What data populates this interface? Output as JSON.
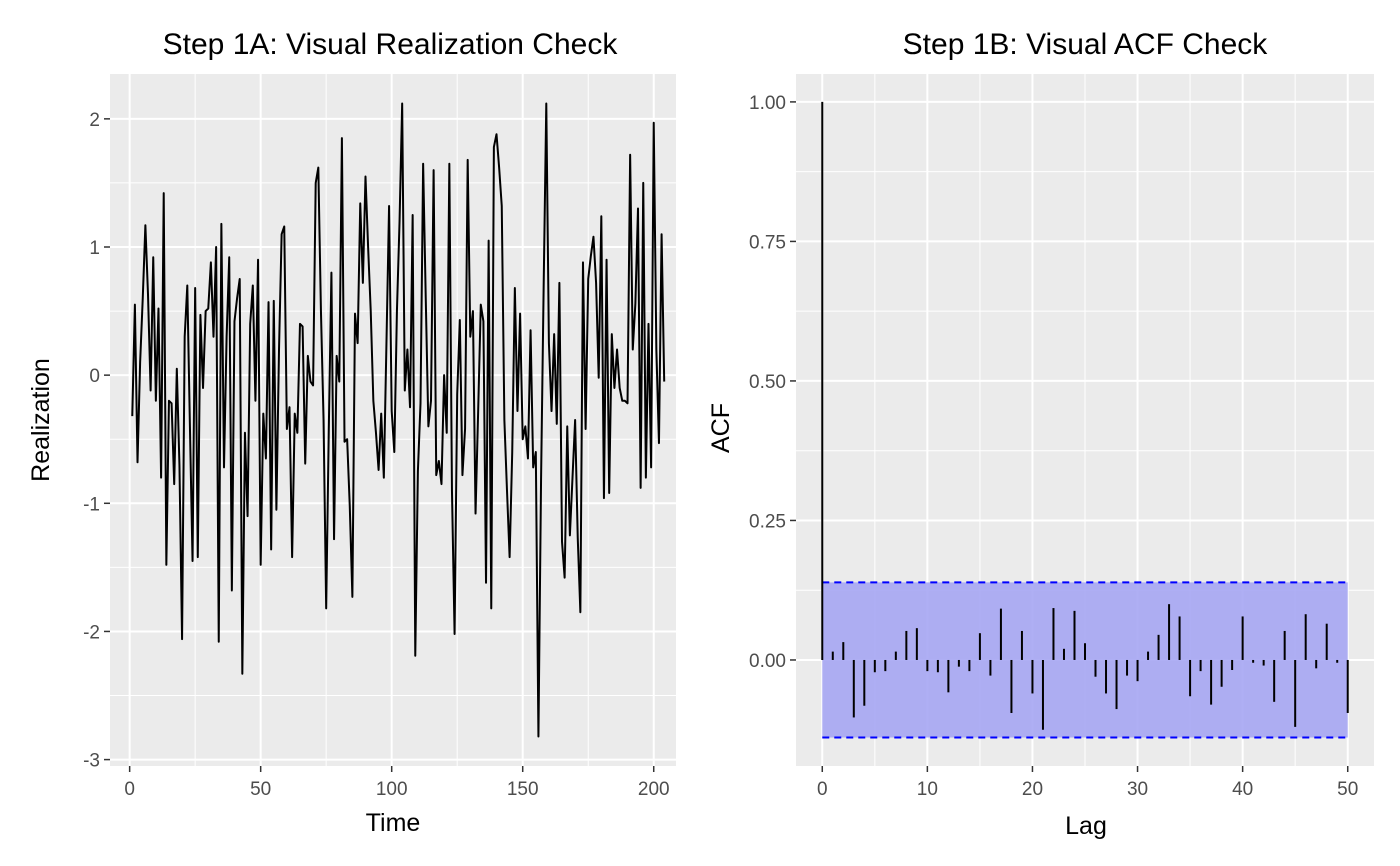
{
  "chart_data": [
    {
      "type": "line",
      "title": "Step 1A: Visual Realization Check",
      "xlabel": "Time",
      "ylabel": "Realization",
      "xlim": [
        -7.5,
        208.5
      ],
      "ylim": [
        -3.05,
        2.35
      ],
      "x_ticks": [
        0,
        50,
        100,
        150,
        200
      ],
      "y_ticks": [
        -3,
        -2,
        -1,
        0,
        1,
        2
      ],
      "grid": true,
      "series": [
        {
          "values": [
            -0.32,
            0.55,
            -0.68,
            0.1,
            0.6,
            1.17,
            0.63,
            -0.12,
            0.92,
            -0.2,
            0.52,
            -0.8,
            1.42,
            -1.48,
            -0.2,
            -0.22,
            -0.85,
            0.05,
            -0.7,
            -2.06,
            0.3,
            0.7,
            -0.4,
            -1.45,
            0.68,
            -1.42,
            0.47,
            -0.1,
            0.5,
            0.52,
            0.88,
            0.3,
            1.0,
            -2.08,
            1.18,
            -0.72,
            0.3,
            0.92,
            -1.68,
            0.42,
            0.6,
            0.75,
            -2.33,
            -0.45,
            -1.1,
            0.4,
            0.7,
            -0.2,
            0.9,
            -1.48,
            -0.3,
            -0.65,
            0.57,
            -1.36,
            0.58,
            -1.05,
            0.2,
            1.1,
            1.16,
            -0.42,
            -0.25,
            -1.42,
            -0.3,
            -0.45,
            0.4,
            0.38,
            -0.69,
            0.15,
            -0.05,
            -0.08,
            1.5,
            1.62,
            0.5,
            -0.35,
            -1.82,
            -0.42,
            0.8,
            -1.28,
            0.15,
            -0.05,
            1.85,
            -0.52,
            -0.5,
            -1.02,
            -1.73,
            0.48,
            0.25,
            1.34,
            0.72,
            1.55,
            1.0,
            0.5,
            -0.2,
            -0.45,
            -0.74,
            -0.3,
            -0.8,
            0.25,
            1.32,
            -0.28,
            -0.6,
            0.5,
            1.2,
            2.12,
            -0.12,
            0.2,
            -0.25,
            1.25,
            -2.19,
            -0.75,
            -0.22,
            1.65,
            0.6,
            -0.4,
            -0.2,
            1.6,
            -0.78,
            -0.67,
            -0.85,
            0.0,
            -0.45,
            1.65,
            -0.9,
            -2.02,
            -0.15,
            0.43,
            -0.78,
            -0.42,
            1.68,
            0.3,
            0.5,
            -1.08,
            -0.28,
            0.55,
            0.42,
            -1.62,
            1.05,
            -1.82,
            1.78,
            1.88,
            1.62,
            1.32,
            -0.35,
            -0.9,
            -1.42,
            -0.6,
            0.68,
            -0.28,
            0.48,
            -0.5,
            -0.4,
            -0.65,
            0.35,
            -0.72,
            -0.6,
            -2.82,
            -0.82,
            0.7,
            2.12,
            0.25,
            -0.28,
            0.32,
            -0.38,
            0.72,
            -1.3,
            -1.58,
            -0.4,
            -1.25,
            -0.8,
            -0.35,
            -1.27,
            -1.85,
            0.88,
            -0.42,
            0.75,
            0.93,
            1.08,
            0.72,
            -0.02,
            1.24,
            -0.96,
            0.9,
            -0.92,
            0.32,
            -0.1,
            0.2,
            -0.1,
            -0.2,
            -0.2,
            -0.22,
            1.72,
            0.2,
            0.56,
            1.3,
            -0.88,
            1.5,
            -0.8,
            0.4,
            -0.72,
            1.97,
            0.2,
            -0.53,
            1.1,
            -0.05
          ]
        }
      ]
    },
    {
      "type": "bar",
      "title": "Step 1B: Visual ACF Check",
      "xlabel": "Lag",
      "ylabel": "ACF",
      "xlim": [
        -2.5,
        52.5
      ],
      "ylim": [
        -0.19,
        1.05
      ],
      "x_ticks": [
        0,
        10,
        20,
        30,
        40,
        50
      ],
      "y_ticks": [
        0.0,
        0.25,
        0.5,
        0.75,
        1.0
      ],
      "y_tick_labels": [
        "0.00",
        "0.25",
        "0.50",
        "0.75",
        "1.00"
      ],
      "grid": true,
      "lags": [
        0,
        1,
        2,
        3,
        4,
        5,
        6,
        7,
        8,
        9,
        10,
        11,
        12,
        13,
        14,
        15,
        16,
        17,
        18,
        19,
        20,
        21,
        22,
        23,
        24,
        25,
        26,
        27,
        28,
        29,
        30,
        31,
        32,
        33,
        34,
        35,
        36,
        37,
        38,
        39,
        40,
        41,
        42,
        43,
        44,
        45,
        46,
        47,
        48,
        49,
        50
      ],
      "values": [
        1.0,
        0.015,
        0.032,
        -0.103,
        -0.082,
        -0.022,
        -0.02,
        0.015,
        0.052,
        0.057,
        -0.02,
        -0.022,
        -0.058,
        -0.012,
        -0.02,
        0.048,
        -0.028,
        0.092,
        -0.095,
        0.052,
        -0.06,
        -0.125,
        0.093,
        0.02,
        0.088,
        0.03,
        -0.03,
        -0.06,
        -0.088,
        -0.028,
        -0.038,
        0.015,
        0.045,
        0.1,
        0.078,
        -0.065,
        -0.02,
        -0.08,
        -0.048,
        -0.018,
        0.078,
        -0.005,
        -0.01,
        -0.075,
        0.052,
        -0.12,
        0.082,
        -0.015,
        0.065,
        -0.005,
        -0.095
      ],
      "confidence_band": [
        -0.139,
        0.139
      ],
      "band_color": "#0000ff",
      "band_fill": "#a6a6f3"
    }
  ]
}
